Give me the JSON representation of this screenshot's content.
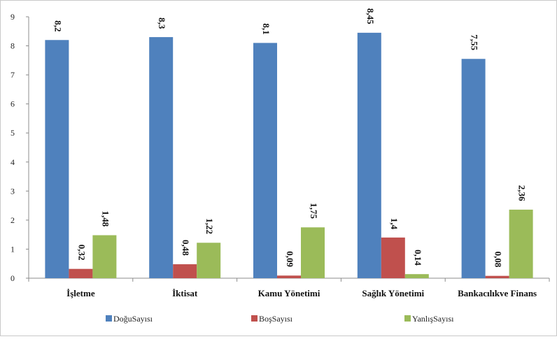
{
  "chart_data": {
    "type": "bar",
    "title": "",
    "xlabel": "",
    "ylabel": "",
    "ylim": [
      0,
      9
    ],
    "yticks": [
      0,
      1,
      2,
      3,
      4,
      5,
      6,
      7,
      8,
      9
    ],
    "grid": false,
    "legend_position": "bottom",
    "categories": [
      "İşletme",
      "İktisat",
      "Kamu Yönetimi",
      "Sağlık Yönetimi",
      "Bankacılıkve Finans"
    ],
    "series": [
      {
        "name": "DoğuSayısı",
        "color": "#4f81bd",
        "values": [
          8.2,
          8.3,
          8.1,
          8.45,
          7.55
        ],
        "labels": [
          "8,2",
          "8,3",
          "8,1",
          "8,45",
          "7,55"
        ]
      },
      {
        "name": "BoşSayısı",
        "color": "#c0504d",
        "values": [
          0.32,
          0.48,
          0.09,
          1.4,
          0.08
        ],
        "labels": [
          "0,32",
          "0,48",
          "0,09",
          "1,4",
          "0,08"
        ]
      },
      {
        "name": "YanlışSayısı",
        "color": "#9bbb59",
        "values": [
          1.48,
          1.22,
          1.75,
          0.14,
          2.36
        ],
        "labels": [
          "1,48",
          "1,22",
          "1,75",
          "0,14",
          "2,36"
        ]
      }
    ]
  }
}
